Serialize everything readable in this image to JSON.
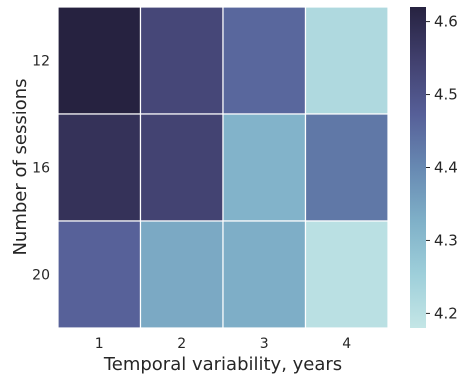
{
  "chart_data": {
    "type": "heatmap",
    "title": "",
    "xlabel": "Temporal variability, years",
    "ylabel": "Number of sessions",
    "x_categories": [
      "1",
      "2",
      "3",
      "4"
    ],
    "y_categories": [
      "12",
      "16",
      "20"
    ],
    "values": [
      [
        4.62,
        4.53,
        4.46,
        4.22
      ],
      [
        4.58,
        4.54,
        4.32,
        4.43
      ],
      [
        4.47,
        4.34,
        4.33,
        4.2
      ]
    ],
    "colorbar": {
      "min": 4.18,
      "max": 4.62,
      "ticks": [
        4.2,
        4.3,
        4.4,
        4.5,
        4.6
      ],
      "tick_labels": [
        "4.2",
        "4.3",
        "4.4",
        "4.5",
        "4.6"
      ]
    },
    "colormap": [
      "#c4e6e6",
      "#9ecfda",
      "#7fb0c8",
      "#6789b2",
      "#565f98",
      "#41406e",
      "#262240"
    ],
    "cell_border_color": "#ffffff"
  }
}
